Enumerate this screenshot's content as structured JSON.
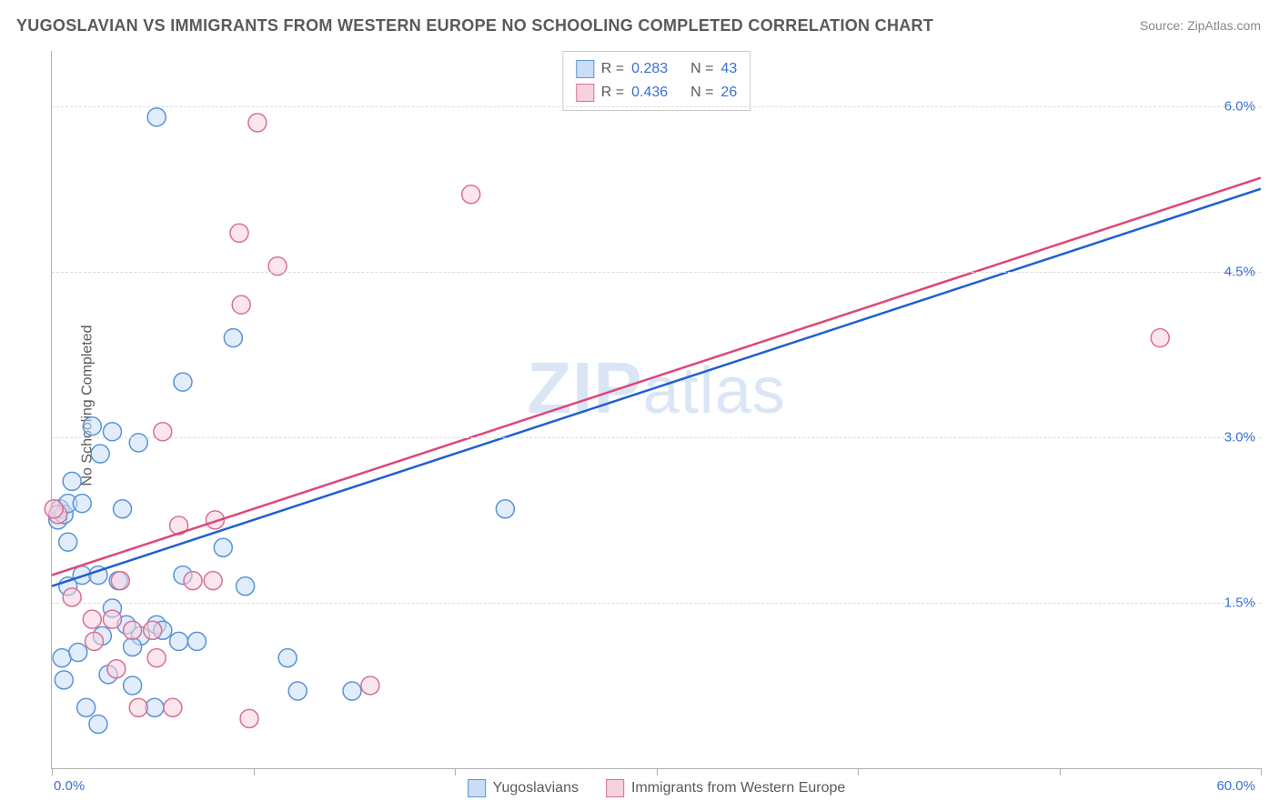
{
  "title": "YUGOSLAVIAN VS IMMIGRANTS FROM WESTERN EUROPE NO SCHOOLING COMPLETED CORRELATION CHART",
  "source_label": "Source:",
  "source_value": "ZipAtlas.com",
  "y_axis_label": "No Schooling Completed",
  "watermark_zip": "ZIP",
  "watermark_rest": "atlas",
  "chart": {
    "type": "scatter",
    "xlim": [
      0,
      60
    ],
    "ylim": [
      0,
      6.5
    ],
    "x_ticks": [
      0,
      10,
      20,
      30,
      40,
      50,
      60
    ],
    "x_tick_labels_visible": {
      "0": "0.0%",
      "60": "60.0%"
    },
    "y_gridlines": [
      1.5,
      3.0,
      4.5,
      6.0
    ],
    "y_tick_labels": {
      "1.5": "1.5%",
      "3.0": "3.0%",
      "4.5": "4.5%",
      "6.0": "6.0%"
    },
    "background_color": "#ffffff",
    "grid_color": "#dcdcdc",
    "axis_color": "#b0b0b0",
    "marker_radius": 10,
    "marker_stroke_width": 1.5,
    "line_width": 2.5,
    "series": [
      {
        "key": "yugoslavians",
        "label": "Yugoslavians",
        "fill_color": "#c9def5",
        "stroke_color": "#5a93d6",
        "fill_opacity": 0.55,
        "R": "0.283",
        "N": "43",
        "trend_line": {
          "x1": 0,
          "y1": 1.65,
          "x2": 60,
          "y2": 5.25,
          "color": "#1f5fd6"
        },
        "points": [
          [
            0.3,
            2.25
          ],
          [
            0.4,
            2.35
          ],
          [
            0.6,
            2.3
          ],
          [
            0.8,
            2.4
          ],
          [
            1.5,
            2.4
          ],
          [
            0.8,
            2.05
          ],
          [
            3.5,
            2.35
          ],
          [
            5.2,
            5.9
          ],
          [
            4.3,
            2.95
          ],
          [
            2.4,
            2.85
          ],
          [
            2.0,
            3.1
          ],
          [
            3.0,
            3.05
          ],
          [
            6.5,
            3.5
          ],
          [
            9.0,
            3.9
          ],
          [
            1.0,
            2.6
          ],
          [
            0.8,
            1.65
          ],
          [
            1.5,
            1.75
          ],
          [
            2.3,
            1.75
          ],
          [
            3.3,
            1.7
          ],
          [
            4.4,
            1.2
          ],
          [
            5.2,
            1.3
          ],
          [
            5.5,
            1.25
          ],
          [
            6.3,
            1.15
          ],
          [
            7.2,
            1.15
          ],
          [
            8.5,
            2.0
          ],
          [
            9.6,
            1.65
          ],
          [
            11.7,
            1.0
          ],
          [
            2.8,
            0.85
          ],
          [
            4.0,
            0.75
          ],
          [
            5.1,
            0.55
          ],
          [
            2.3,
            0.4
          ],
          [
            12.2,
            0.7
          ],
          [
            14.9,
            0.7
          ],
          [
            3.7,
            1.3
          ],
          [
            6.5,
            1.75
          ],
          [
            0.5,
            1.0
          ],
          [
            1.3,
            1.05
          ],
          [
            2.5,
            1.2
          ],
          [
            0.6,
            0.8
          ],
          [
            3.0,
            1.45
          ],
          [
            4.0,
            1.1
          ],
          [
            22.5,
            2.35
          ],
          [
            1.7,
            0.55
          ]
        ]
      },
      {
        "key": "immigrants_we",
        "label": "Immigrants from Western Europe",
        "fill_color": "#f6d2dd",
        "stroke_color": "#d77096",
        "fill_opacity": 0.55,
        "R": "0.436",
        "N": "26",
        "trend_line": {
          "x1": 0,
          "y1": 1.75,
          "x2": 60,
          "y2": 5.35,
          "color": "#e0457a"
        },
        "points": [
          [
            10.2,
            5.85
          ],
          [
            9.3,
            4.85
          ],
          [
            11.2,
            4.55
          ],
          [
            9.4,
            4.2
          ],
          [
            20.8,
            5.2
          ],
          [
            5.5,
            3.05
          ],
          [
            55.0,
            3.9
          ],
          [
            0.3,
            2.3
          ],
          [
            8.1,
            2.25
          ],
          [
            6.3,
            2.2
          ],
          [
            0.1,
            2.35
          ],
          [
            1.0,
            1.55
          ],
          [
            2.0,
            1.35
          ],
          [
            3.0,
            1.35
          ],
          [
            4.0,
            1.25
          ],
          [
            5.0,
            1.25
          ],
          [
            7.0,
            1.7
          ],
          [
            8.0,
            1.7
          ],
          [
            4.3,
            0.55
          ],
          [
            6.0,
            0.55
          ],
          [
            9.8,
            0.45
          ],
          [
            15.8,
            0.75
          ],
          [
            3.2,
            0.9
          ],
          [
            2.1,
            1.15
          ],
          [
            3.4,
            1.7
          ],
          [
            5.2,
            1.0
          ]
        ]
      }
    ]
  },
  "legend_top": {
    "R_label": "R =",
    "N_label": "N ="
  },
  "bottom_legend": {
    "items": [
      "yugoslavians",
      "immigrants_we"
    ]
  }
}
